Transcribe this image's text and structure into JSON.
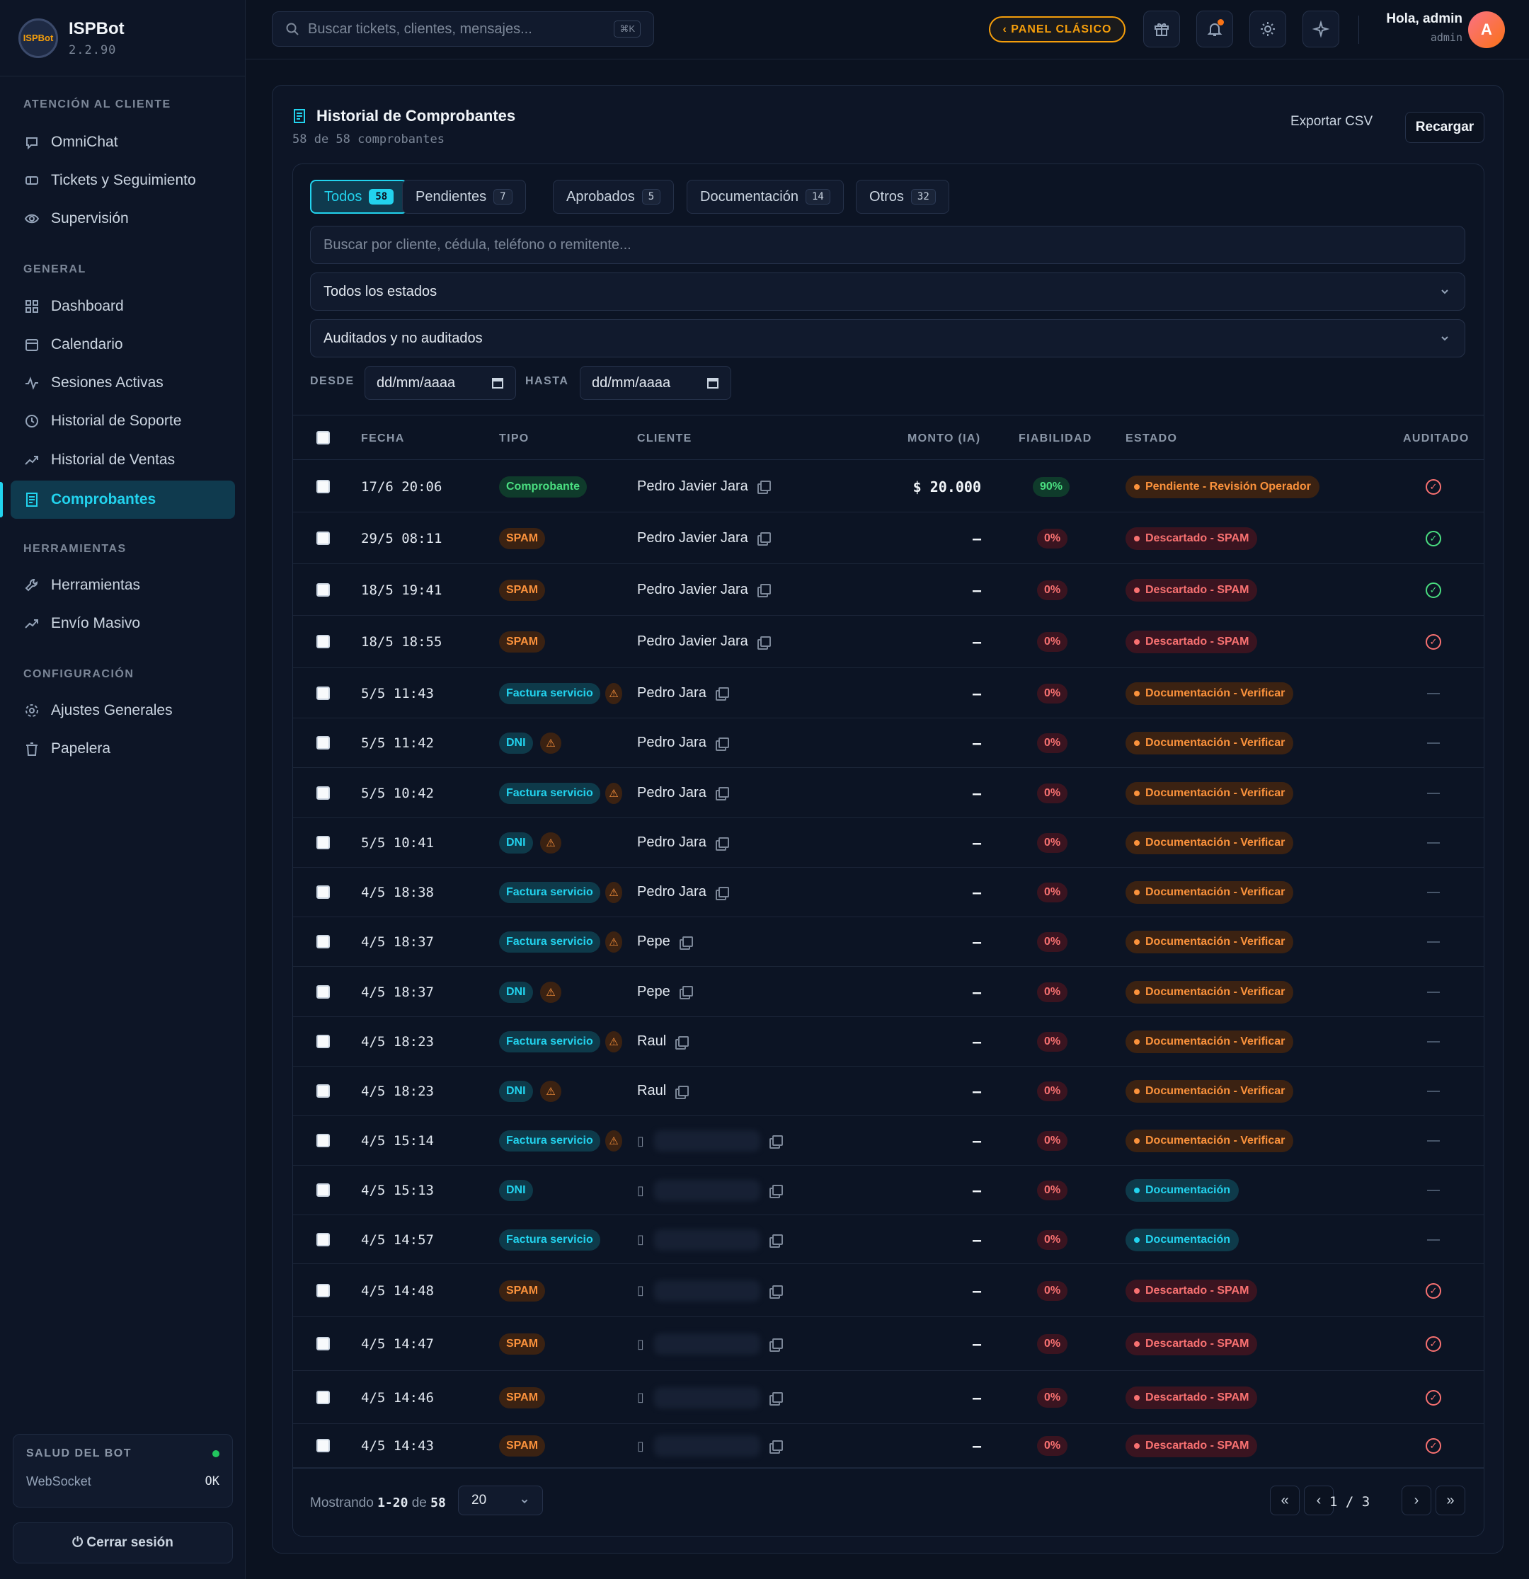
{
  "app": {
    "name": "ISPBot",
    "version": "2.2.90",
    "logo_text": "ISPBot"
  },
  "sidebar": {
    "sections": [
      {
        "label": "ATENCIÓN AL CLIENTE"
      },
      {
        "label": "GENERAL"
      },
      {
        "label": "HERRAMIENTAS"
      },
      {
        "label": "CONFIGURACIÓN"
      }
    ],
    "items": [
      {
        "label": "OmniChat",
        "icon": "chat-icon"
      },
      {
        "label": "Tickets y Seguimiento",
        "icon": "ticket-icon"
      },
      {
        "label": "Supervisión",
        "icon": "eye-icon"
      },
      {
        "label": "Dashboard",
        "icon": "grid-icon"
      },
      {
        "label": "Calendario",
        "icon": "calendar-icon"
      },
      {
        "label": "Sesiones Activas",
        "icon": "activity-icon"
      },
      {
        "label": "Historial de Soporte",
        "icon": "history-icon"
      },
      {
        "label": "Historial de Ventas",
        "icon": "trend-icon"
      },
      {
        "label": "Comprobantes",
        "icon": "receipt-icon",
        "active": true
      },
      {
        "label": "Herramientas",
        "icon": "wrench-icon"
      },
      {
        "label": "Envío Masivo",
        "icon": "trend-icon"
      },
      {
        "label": "Ajustes Generales",
        "icon": "gear-icon"
      },
      {
        "label": "Papelera",
        "icon": "trash-icon"
      }
    ],
    "health": {
      "title": "SALUD DEL BOT",
      "label": "WebSocket",
      "value": "OK"
    },
    "logout": "⏻ Cerrar sesión"
  },
  "topbar": {
    "search_placeholder": "Buscar tickets, clientes, mensajes...",
    "search_kbd": "⌘K",
    "panel_button": "‹ PANEL CLÁSICO",
    "greeting": "Hola, admin",
    "role": "admin",
    "avatar_initial": "A"
  },
  "page": {
    "title": "Historial de Comprobantes",
    "subtitle": "58 de 58 comprobantes",
    "export": "Exportar CSV",
    "reload": "Recargar",
    "tabs": [
      {
        "label": "Todos",
        "count": "58",
        "active": true
      },
      {
        "label": "Pendientes",
        "count": "7"
      },
      {
        "label": "Aprobados",
        "count": "5"
      },
      {
        "label": "Documentación",
        "count": "14"
      },
      {
        "label": "Otros",
        "count": "32"
      }
    ],
    "filter_search_placeholder": "Buscar por cliente, cédula, teléfono o remitente...",
    "filter_status": "Todos los estados",
    "filter_audit": "Auditados y no auditados",
    "date_from_label": "DESDE",
    "date_to_label": "HASTA",
    "date_placeholder": "dd/mm/aaaa"
  },
  "table": {
    "headers": [
      "FECHA",
      "TIPO",
      "CLIENTE",
      "MONTO (IA)",
      "FIABILIDAD",
      "ESTADO",
      "AUDITADO"
    ],
    "rows": [
      {
        "date": "17/6 20:06",
        "type": "Comprobante",
        "type_style": "green",
        "warn": false,
        "client": "Pedro Javier Jara",
        "amount": "$ 20.000",
        "rel": "90%",
        "rel_style": "green",
        "status": "Pendiente - Revisión Operador",
        "status_style": "pend",
        "audited": "red"
      },
      {
        "date": "29/5 08:11",
        "type": "SPAM",
        "type_style": "spam",
        "warn": false,
        "client": "Pedro Javier Jara",
        "amount": "–",
        "rel": "0%",
        "rel_style": "red",
        "status": "Descartado - SPAM",
        "status_style": "spam",
        "audited": "green"
      },
      {
        "date": "18/5 19:41",
        "type": "SPAM",
        "type_style": "spam",
        "warn": false,
        "client": "Pedro Javier Jara",
        "amount": "–",
        "rel": "0%",
        "rel_style": "red",
        "status": "Descartado - SPAM",
        "status_style": "spam",
        "audited": "green"
      },
      {
        "date": "18/5 18:55",
        "type": "SPAM",
        "type_style": "spam",
        "warn": false,
        "client": "Pedro Javier Jara",
        "amount": "–",
        "rel": "0%",
        "rel_style": "red",
        "status": "Descartado - SPAM",
        "status_style": "spam",
        "audited": "red"
      },
      {
        "date": "5/5 11:43",
        "type": "Factura servicio",
        "type_style": "cyan",
        "warn": true,
        "client": "Pedro Jara",
        "amount": "–",
        "rel": "0%",
        "rel_style": "red",
        "status": "Documentación - Verificar",
        "status_style": "pend",
        "audited": "none"
      },
      {
        "date": "5/5 11:42",
        "type": "DNI",
        "type_style": "cyan",
        "warn": true,
        "client": "Pedro Jara",
        "amount": "–",
        "rel": "0%",
        "rel_style": "red",
        "status": "Documentación - Verificar",
        "status_style": "pend",
        "audited": "none"
      },
      {
        "date": "5/5 10:42",
        "type": "Factura servicio",
        "type_style": "cyan",
        "warn": true,
        "client": "Pedro Jara",
        "amount": "–",
        "rel": "0%",
        "rel_style": "red",
        "status": "Documentación - Verificar",
        "status_style": "pend",
        "audited": "none"
      },
      {
        "date": "5/5 10:41",
        "type": "DNI",
        "type_style": "cyan",
        "warn": true,
        "client": "Pedro Jara",
        "amount": "–",
        "rel": "0%",
        "rel_style": "red",
        "status": "Documentación - Verificar",
        "status_style": "pend",
        "audited": "none"
      },
      {
        "date": "4/5 18:38",
        "type": "Factura servicio",
        "type_style": "cyan",
        "warn": true,
        "client": "Pedro Jara",
        "amount": "–",
        "rel": "0%",
        "rel_style": "red",
        "status": "Documentación - Verificar",
        "status_style": "pend",
        "audited": "none"
      },
      {
        "date": "4/5 18:37",
        "type": "Factura servicio",
        "type_style": "cyan",
        "warn": true,
        "client": "Pepe",
        "amount": "–",
        "rel": "0%",
        "rel_style": "red",
        "status": "Documentación - Verificar",
        "status_style": "pend",
        "audited": "none"
      },
      {
        "date": "4/5 18:37",
        "type": "DNI",
        "type_style": "cyan",
        "warn": true,
        "client": "Pepe",
        "amount": "–",
        "rel": "0%",
        "rel_style": "red",
        "status": "Documentación - Verificar",
        "status_style": "pend",
        "audited": "none"
      },
      {
        "date": "4/5 18:23",
        "type": "Factura servicio",
        "type_style": "cyan",
        "warn": true,
        "client": "Raul",
        "amount": "–",
        "rel": "0%",
        "rel_style": "red",
        "status": "Documentación - Verificar",
        "status_style": "pend",
        "audited": "none"
      },
      {
        "date": "4/5 18:23",
        "type": "DNI",
        "type_style": "cyan",
        "warn": true,
        "client": "Raul",
        "amount": "–",
        "rel": "0%",
        "rel_style": "red",
        "status": "Documentación - Verificar",
        "status_style": "pend",
        "audited": "none"
      },
      {
        "date": "4/5 15:14",
        "type": "Factura servicio",
        "type_style": "cyan",
        "warn": true,
        "client": "",
        "phone": true,
        "amount": "–",
        "rel": "0%",
        "rel_style": "red",
        "status": "Documentación - Verificar",
        "status_style": "pend",
        "audited": "none"
      },
      {
        "date": "4/5 15:13",
        "type": "DNI",
        "type_style": "cyan",
        "warn": false,
        "client": "",
        "phone": true,
        "amount": "–",
        "rel": "0%",
        "rel_style": "red",
        "status": "Documentación",
        "status_style": "doc",
        "audited": "none"
      },
      {
        "date": "4/5 14:57",
        "type": "Factura servicio",
        "type_style": "cyan",
        "warn": false,
        "client": "",
        "phone": true,
        "amount": "–",
        "rel": "0%",
        "rel_style": "red",
        "status": "Documentación",
        "status_style": "doc",
        "audited": "none"
      },
      {
        "date": "4/5 14:48",
        "type": "SPAM",
        "type_style": "spam",
        "warn": false,
        "client": "",
        "phone": true,
        "amount": "–",
        "rel": "0%",
        "rel_style": "red",
        "status": "Descartado - SPAM",
        "status_style": "spam",
        "audited": "red"
      },
      {
        "date": "4/5 14:47",
        "type": "SPAM",
        "type_style": "spam",
        "warn": false,
        "client": "",
        "phone": true,
        "amount": "–",
        "rel": "0%",
        "rel_style": "red",
        "status": "Descartado - SPAM",
        "status_style": "spam",
        "audited": "red"
      },
      {
        "date": "4/5 14:46",
        "type": "SPAM",
        "type_style": "spam",
        "warn": false,
        "client": "",
        "phone": true,
        "amount": "–",
        "rel": "0%",
        "rel_style": "red",
        "status": "Descartado - SPAM",
        "status_style": "spam",
        "audited": "red"
      },
      {
        "date": "4/5 14:43",
        "type": "SPAM",
        "type_style": "spam",
        "warn": false,
        "client": "",
        "phone": true,
        "amount": "–",
        "rel": "0%",
        "rel_style": "red",
        "status": "Descartado - SPAM",
        "status_style": "spam",
        "audited": "red"
      }
    ]
  },
  "footer": {
    "showing_prefix": "Mostrando",
    "range": "1-20",
    "of": "de",
    "total": "58",
    "page_size": "20",
    "page_info": "1 / 3",
    "first": "«",
    "prev": "‹",
    "next": "›",
    "last": "»"
  }
}
